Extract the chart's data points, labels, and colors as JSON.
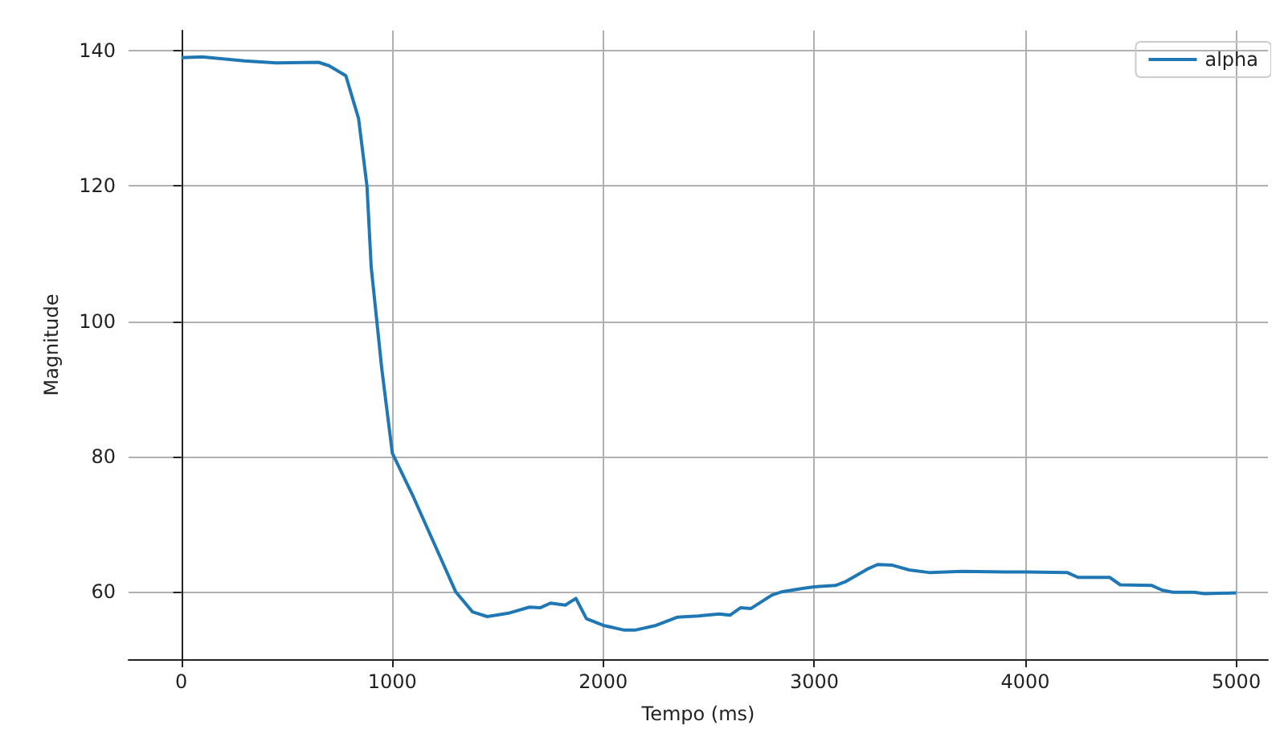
{
  "chart_data": {
    "type": "line",
    "xlabel": "Tempo (ms)",
    "ylabel": "Magnitude",
    "xlim": [
      -250,
      5150
    ],
    "ylim": [
      50,
      143
    ],
    "xticks": [
      0,
      1000,
      2000,
      3000,
      4000,
      5000
    ],
    "yticks": [
      60,
      80,
      100,
      120,
      140
    ],
    "grid": true,
    "legend": "top right",
    "series": [
      {
        "name": "alpha",
        "color": "#1f77b4",
        "x": [
          0,
          100,
          300,
          450,
          650,
          700,
          780,
          840,
          880,
          900,
          950,
          1000,
          1100,
          1200,
          1250,
          1300,
          1380,
          1450,
          1550,
          1650,
          1700,
          1750,
          1820,
          1870,
          1920,
          2000,
          2100,
          2150,
          2250,
          2350,
          2450,
          2550,
          2600,
          2650,
          2700,
          2800,
          2850,
          2950,
          3000,
          3100,
          3150,
          3250,
          3300,
          3370,
          3450,
          3550,
          3700,
          3900,
          4000,
          4200,
          4250,
          4400,
          4450,
          4600,
          4650,
          4700,
          4800,
          4850,
          5000
        ],
        "values": [
          139,
          139.1,
          138.5,
          138.2,
          138.3,
          137.8,
          136.3,
          130,
          120,
          108,
          93,
          80.5,
          74,
          67,
          63.5,
          60,
          57,
          56.3,
          56.8,
          57.7,
          57.6,
          58.3,
          58,
          59,
          56,
          55,
          54.3,
          54.3,
          55,
          56.2,
          56.4,
          56.7,
          56.5,
          57.6,
          57.5,
          59.5,
          60,
          60.5,
          60.7,
          60.9,
          61.5,
          63.3,
          64,
          63.9,
          63.2,
          62.8,
          63,
          62.9,
          62.9,
          62.8,
          62.1,
          62.1,
          61,
          60.9,
          60.2,
          59.9,
          59.9,
          59.7,
          59.8
        ]
      }
    ]
  }
}
